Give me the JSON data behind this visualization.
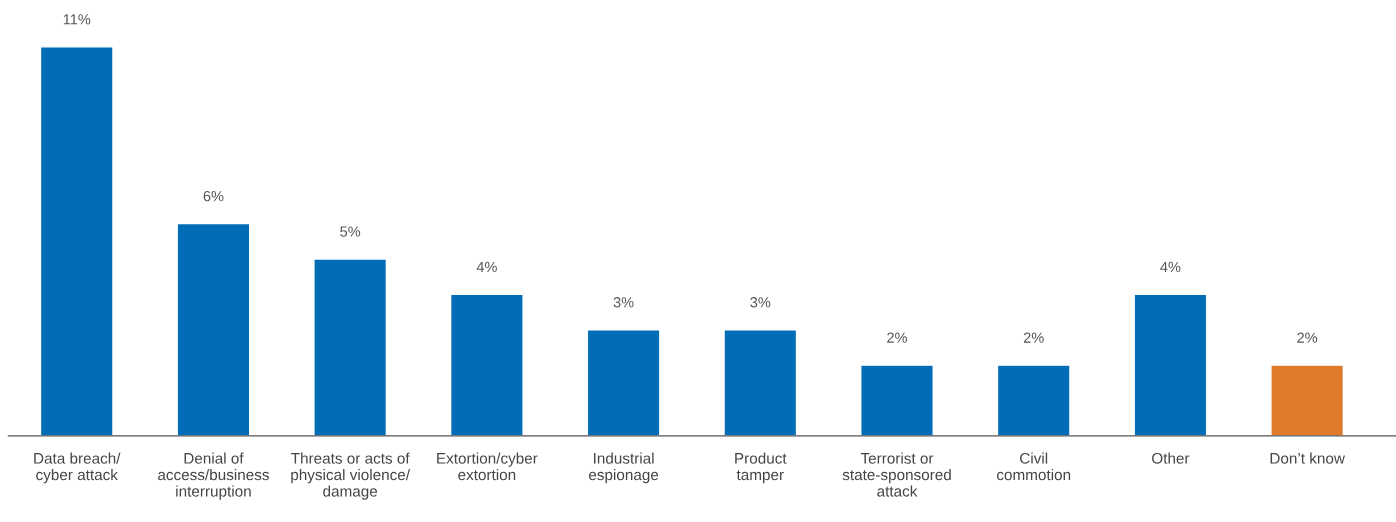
{
  "chart_data": {
    "type": "bar",
    "categories": [
      "Data breach/\ncyber attack",
      "Denial of\naccess/business\ninterruption",
      "Threats or acts of\nphysical violence/\ndamage",
      "Extortion/cyber\nextortion",
      "Industrial\nespionage",
      "Product\ntamper",
      "Terrorist or\nstate-sponsored\nattack",
      "Civil\ncommotion",
      "Other",
      "Don’t know"
    ],
    "values": [
      11,
      6,
      5,
      4,
      3,
      3,
      2,
      2,
      4,
      2
    ],
    "colors": [
      "#006db6",
      "#006db6",
      "#006db6",
      "#006db6",
      "#006db6",
      "#006db6",
      "#006db6",
      "#006db6",
      "#006db6",
      "#e07a2b"
    ],
    "value_labels": [
      "11%",
      "6%",
      "5%",
      "4%",
      "3%",
      "3%",
      "2%",
      "2%",
      "4%",
      "2%"
    ],
    "grid": false,
    "legend": false
  }
}
